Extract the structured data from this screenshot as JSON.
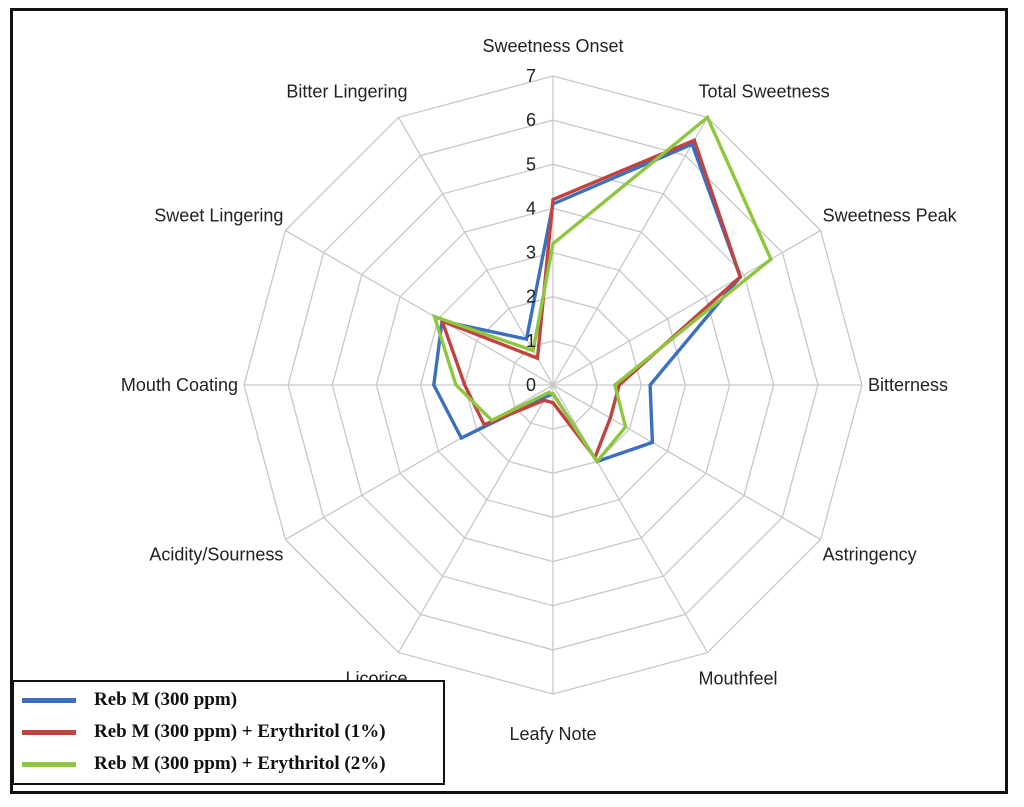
{
  "chart_data": {
    "type": "radar",
    "title": "",
    "categories": [
      "Sweetness Onset",
      "Total Sweetness",
      "Sweetness Peak",
      "Bitterness",
      "Astringency",
      "Mouthfeel",
      "Leafy Note",
      "Licorice",
      "Acidity/Sourness",
      "Mouth Coating",
      "Sweet Lingering",
      "Bitter Lingering"
    ],
    "ticks": [
      0,
      1,
      2,
      3,
      4,
      5,
      6,
      7
    ],
    "rlim": [
      0,
      7
    ],
    "series": [
      {
        "name": "Reb M (300 ppm)",
        "color": "#3b6fc0",
        "values": [
          4.1,
          6.3,
          4.9,
          2.2,
          2.6,
          2.0,
          0.2,
          0.3,
          2.4,
          2.7,
          2.9,
          1.2
        ]
      },
      {
        "name": "Reb M (300 ppm) + Erythritol  (1%)",
        "color": "#c0433f",
        "values": [
          4.2,
          6.4,
          4.9,
          1.5,
          1.5,
          1.9,
          0.4,
          0.4,
          1.8,
          2.0,
          2.9,
          0.7
        ]
      },
      {
        "name": "Reb M (300 ppm) + Erythritol  (2%)",
        "color": "#8fc63f",
        "values": [
          3.2,
          7.0,
          5.7,
          1.4,
          1.9,
          2.0,
          0.2,
          0.2,
          1.6,
          2.2,
          3.1,
          0.9
        ]
      }
    ],
    "legend_position": "bottom-left"
  }
}
